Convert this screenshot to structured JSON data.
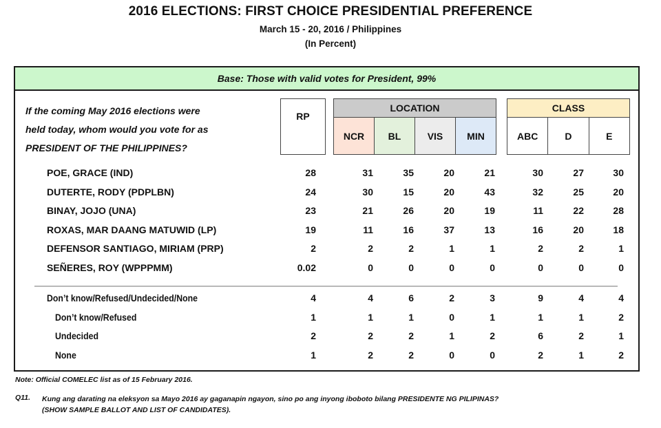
{
  "header": {
    "title": "2016 ELECTIONS: FIRST CHOICE PRESIDENTIAL PREFERENCE",
    "subtitle": "March 15 - 20, 2016 / Philippines",
    "unit": "(In Percent)"
  },
  "table": {
    "base": "Base: Those with valid votes for President, 99%",
    "question_lines": [
      "If the coming May 2016 elections were",
      "held today, whom would you vote for as",
      "PRESIDENT OF THE PHILIPPINES?"
    ],
    "col_rp": "RP",
    "location": {
      "label": "LOCATION",
      "cols": [
        "NCR",
        "BL",
        "VIS",
        "MIN"
      ],
      "colors": [
        "#fde3d7",
        "#e3f1dc",
        "#ececec",
        "#dde9f7"
      ]
    },
    "class": {
      "label": "CLASS",
      "cols": [
        "ABC",
        "D",
        "E"
      ],
      "color": "#fdeec4"
    },
    "candidates": [
      {
        "name": "POE, GRACE (IND)",
        "values": [
          "28",
          "31",
          "35",
          "20",
          "21",
          "30",
          "27",
          "30"
        ]
      },
      {
        "name": "DUTERTE, RODY (PDPLBN)",
        "values": [
          "24",
          "30",
          "15",
          "20",
          "43",
          "32",
          "25",
          "20"
        ]
      },
      {
        "name": "BINAY, JOJO (UNA)",
        "values": [
          "23",
          "21",
          "26",
          "20",
          "19",
          "11",
          "22",
          "28"
        ]
      },
      {
        "name": "ROXAS, MAR DAANG MATUWID (LP)",
        "values": [
          "19",
          "11",
          "16",
          "37",
          "13",
          "16",
          "20",
          "18"
        ]
      },
      {
        "name": "DEFENSOR SANTIAGO, MIRIAM (PRP)",
        "values": [
          "2",
          "2",
          "2",
          "1",
          "1",
          "2",
          "2",
          "1"
        ]
      },
      {
        "name": "SEÑERES, ROY (WPPPMM)",
        "values": [
          "0.02",
          "0",
          "0",
          "0",
          "0",
          "0",
          "0",
          "0"
        ]
      }
    ],
    "others": [
      {
        "name": "Don’t know/Refused/Undecided/None",
        "values": [
          "4",
          "4",
          "6",
          "2",
          "3",
          "9",
          "4",
          "4"
        ]
      },
      {
        "name": "Don’t know/Refused",
        "values": [
          "1",
          "1",
          "1",
          "0",
          "1",
          "1",
          "1",
          "2"
        ]
      },
      {
        "name": "Undecided",
        "values": [
          "2",
          "2",
          "2",
          "1",
          "2",
          "6",
          "2",
          "1"
        ]
      },
      {
        "name": "None",
        "values": [
          "1",
          "2",
          "2",
          "0",
          "0",
          "2",
          "1",
          "2"
        ]
      }
    ]
  },
  "footer": {
    "note": "Note: Official COMELEC list as of 15 February 2016.",
    "q_number": "Q11.",
    "q_text_1": "Kung ang darating na eleksyon sa Mayo 2016 ay gaganapin ngayon, sino po ang inyong iboboto bilang PRESIDENTE NG PILIPINAS?",
    "q_text_2": "(SHOW SAMPLE BALLOT AND LIST OF CANDIDATES)."
  },
  "colors": {
    "base_bar": "#ccf7cc",
    "location_header": "#cbcbcb",
    "class_header": "#fdeec4",
    "border": "#1a1a1a"
  },
  "chart_data": {
    "type": "table",
    "title": "2016 ELECTIONS: FIRST CHOICE PRESIDENTIAL PREFERENCE",
    "subtitle": "March 15 - 20, 2016 / Philippines (In Percent)",
    "base": "Those with valid votes for President, 99%",
    "columns": [
      "RP",
      "NCR",
      "BL",
      "VIS",
      "MIN",
      "ABC",
      "D",
      "E"
    ],
    "column_groups": {
      "LOCATION": [
        "NCR",
        "BL",
        "VIS",
        "MIN"
      ],
      "CLASS": [
        "ABC",
        "D",
        "E"
      ]
    },
    "rows": [
      {
        "label": "POE, GRACE (IND)",
        "values": [
          28,
          31,
          35,
          20,
          21,
          30,
          27,
          30
        ]
      },
      {
        "label": "DUTERTE, RODY (PDPLBN)",
        "values": [
          24,
          30,
          15,
          20,
          43,
          32,
          25,
          20
        ]
      },
      {
        "label": "BINAY, JOJO (UNA)",
        "values": [
          23,
          21,
          26,
          20,
          19,
          11,
          22,
          28
        ]
      },
      {
        "label": "ROXAS, MAR DAANG MATUWID (LP)",
        "values": [
          19,
          11,
          16,
          37,
          13,
          16,
          20,
          18
        ]
      },
      {
        "label": "DEFENSOR SANTIAGO, MIRIAM (PRP)",
        "values": [
          2,
          2,
          2,
          1,
          1,
          2,
          2,
          1
        ]
      },
      {
        "label": "SEÑERES, ROY (WPPPMM)",
        "values": [
          0.02,
          0,
          0,
          0,
          0,
          0,
          0,
          0
        ]
      },
      {
        "label": "Don’t know/Refused/Undecided/None",
        "values": [
          4,
          4,
          6,
          2,
          3,
          9,
          4,
          4
        ]
      },
      {
        "label": "Don’t know/Refused",
        "values": [
          1,
          1,
          1,
          0,
          1,
          1,
          1,
          2
        ]
      },
      {
        "label": "Undecided",
        "values": [
          2,
          2,
          2,
          1,
          2,
          6,
          2,
          1
        ]
      },
      {
        "label": "None",
        "values": [
          1,
          2,
          2,
          0,
          0,
          2,
          1,
          2
        ]
      }
    ]
  }
}
